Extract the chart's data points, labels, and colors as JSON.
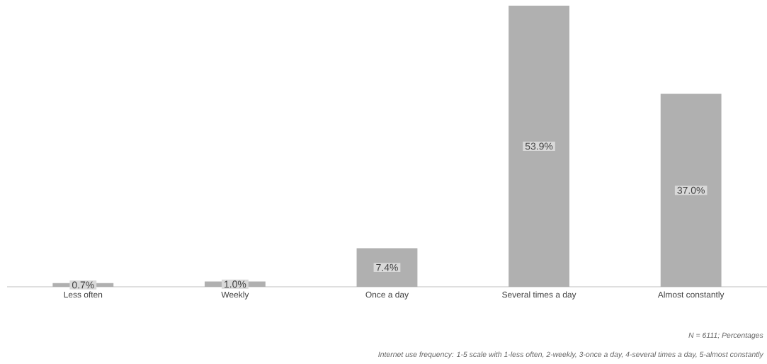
{
  "chart_data": {
    "type": "bar",
    "categories": [
      "Less often",
      "Weekly",
      "Once a day",
      "Several times a day",
      "Almost constantly"
    ],
    "values": [
      0.7,
      1.0,
      7.4,
      53.9,
      37.0
    ],
    "value_labels": [
      "0.7%",
      "1.0%",
      "7.4%",
      "53.9%",
      "37.0%"
    ],
    "color": "#b0b0b0",
    "annotations": [
      "N = 6111; Percentages",
      "Internet use frequency: 1-5 scale with 1-less often, 2-weekly, 3-once a day, 4-several times a day, 5-almost constantly"
    ]
  }
}
